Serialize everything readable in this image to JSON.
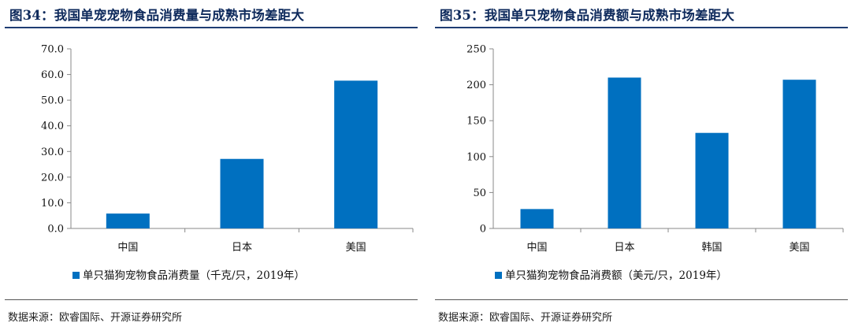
{
  "colors": {
    "bar": "#0070c0",
    "title": "#0e2a5c",
    "rule": "#1f3d73"
  },
  "chart_data": [
    {
      "type": "bar",
      "title": "图34：我国单宠宠物食品消费量与成熟市场差距大",
      "categories": [
        "中国",
        "日本",
        "美国"
      ],
      "series": [
        {
          "name": "单只猫狗宠物食品消费量（千克/只，2019年）",
          "values": [
            5.8,
            27.1,
            57.6
          ]
        }
      ],
      "ylim": [
        0,
        70
      ],
      "yticks": [
        0,
        10,
        20,
        30,
        40,
        50,
        60,
        70
      ],
      "ytick_labels": [
        "0.0",
        "10.0",
        "20.0",
        "30.0",
        "40.0",
        "50.0",
        "60.0",
        "70.0"
      ],
      "xlabel": "",
      "ylabel": "",
      "grid": false,
      "legend_position": "bottom",
      "source": "数据来源：欧睿国际、开源证券研究所"
    },
    {
      "type": "bar",
      "title": "图35：我国单只宠物食品消费额与成熟市场差距大",
      "categories": [
        "中国",
        "日本",
        "韩国",
        "美国"
      ],
      "series": [
        {
          "name": "单只猫狗宠物食品消费额（美元/只，2019年）",
          "values": [
            27,
            210,
            133,
            207
          ]
        }
      ],
      "ylim": [
        0,
        250
      ],
      "yticks": [
        0,
        50,
        100,
        150,
        200,
        250
      ],
      "ytick_labels": [
        "0",
        "50",
        "100",
        "150",
        "200",
        "250"
      ],
      "xlabel": "",
      "ylabel": "",
      "grid": false,
      "legend_position": "bottom",
      "source": "数据来源：欧睿国际、开源证券研究所"
    }
  ]
}
